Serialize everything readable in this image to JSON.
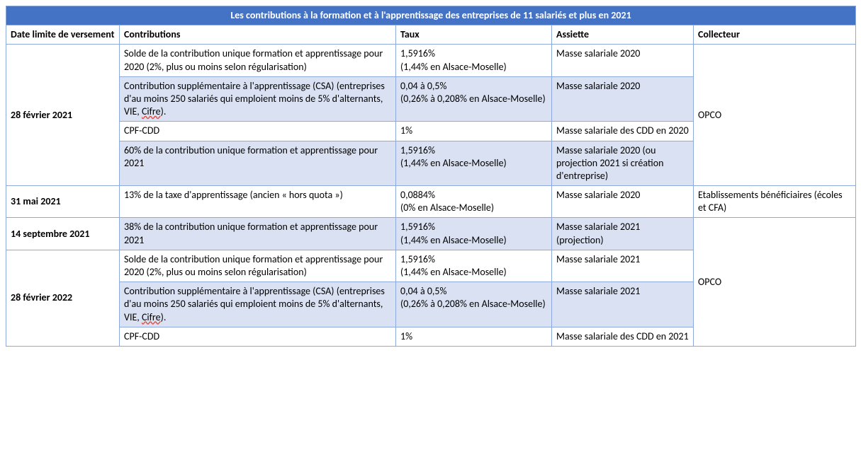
{
  "title": "Les contributions à la formation et à l'apprentissage des entreprises de 11 salariés et plus en 2021",
  "columns": [
    "Date limite de versement",
    "Contributions",
    "Taux",
    "Assiette",
    "Collecteur"
  ],
  "colors": {
    "header_bg": "#4472c4",
    "header_fg": "#ffffff",
    "band_light": "#ffffff",
    "band_shade": "#d9e1f2",
    "border": "#8ea9db"
  },
  "groups": [
    {
      "date": "28 février 2021",
      "collector": "OPCO",
      "rows": [
        {
          "contribution": "Solde de la contribution unique formation et apprentissage pour 2020 (2%, plus ou moins selon régularisation)",
          "taux": "1,5916%\n(1,44% en Alsace-Moselle)",
          "assiette": "Masse salariale 2020",
          "shade": false
        },
        {
          "contribution": "Contribution supplémentaire à l'apprentissage (CSA) (entreprises d'au moins 250 salariés qui emploient moins de 5% d'alternants, VIE, Cifre).",
          "contribution_squiggle_tail": "Cifre",
          "taux": "0,04 à 0,5%\n(0,26% à 0,208% en Alsace-Moselle)",
          "assiette": "Masse salariale 2020",
          "shade": true
        },
        {
          "contribution": "CPF-CDD",
          "taux": "1%",
          "assiette": "Masse salariale des CDD en 2020",
          "shade": false
        },
        {
          "contribution": "60% de la contribution unique formation et apprentissage pour 2021",
          "taux": "1,5916%\n(1,44% en Alsace-Moselle)",
          "assiette": "Masse salariale 2020 (ou projection 2021 si création d'entreprise)",
          "shade": true
        }
      ]
    },
    {
      "date": "31 mai 2021",
      "collector": "Etablissements bénéficiaires (écoles et CFA)",
      "rows": [
        {
          "contribution": "13% de la taxe d'apprentissage (ancien « hors quota »)",
          "taux": "0,0884%\n(0% en Alsace-Moselle)",
          "assiette": "Masse salariale 2020",
          "shade": false
        }
      ]
    },
    {
      "date": "14 septembre 2021",
      "rows": [
        {
          "contribution": "38% de la contribution unique formation et apprentissage pour 2021",
          "taux": "1,5916%\n(1,44% en Alsace-Moselle)",
          "assiette": "Masse salariale 2021 (projection)",
          "shade": true
        }
      ],
      "collector_merged_below": true
    },
    {
      "date": "28 février 2022",
      "collector": "OPCO",
      "collector_span_extra": 1,
      "rows": [
        {
          "contribution": "Solde de la contribution unique formation et apprentissage pour 2020 (2%, plus ou moins selon régularisation)",
          "taux": "1,5916%\n(1,44% en Alsace-Moselle)",
          "assiette": "Masse salariale 2021",
          "shade": false
        },
        {
          "contribution": "Contribution supplémentaire à l'apprentissage (CSA) (entreprises d'au moins 250 salariés qui emploient moins de 5% d'alternants, VIE, Cifre).",
          "contribution_squiggle_tail": "Cifre",
          "taux": "0,04 à 0,5%\n(0,26% à 0,208% en Alsace-Moselle)",
          "assiette": "Masse salariale 2021",
          "shade": true
        },
        {
          "contribution": "CPF-CDD",
          "taux": "1%",
          "assiette": "Masse salariale des CDD en 2021",
          "shade": false
        }
      ]
    }
  ]
}
